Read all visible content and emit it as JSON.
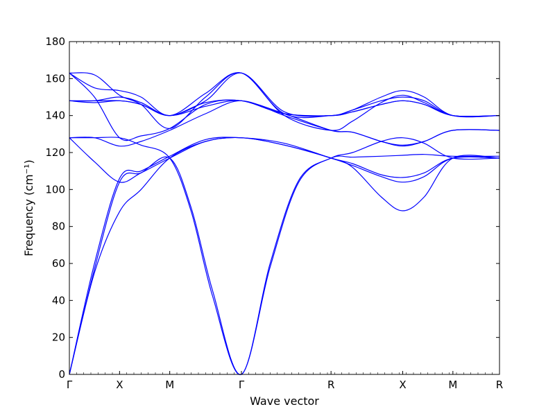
{
  "chart_data": {
    "type": "line",
    "title": "",
    "xlabel": "Wave vector",
    "ylabel": "Frequency (cm⁻¹)",
    "ylim": [
      0,
      180
    ],
    "yticks": [
      0,
      20,
      40,
      60,
      80,
      100,
      120,
      140,
      160,
      180
    ],
    "xlim": [
      0,
      6.0
    ],
    "xticks": [
      {
        "label": "Γ",
        "x": 0.0
      },
      {
        "label": "X",
        "x": 0.7
      },
      {
        "label": "M",
        "x": 1.4
      },
      {
        "label": "Γ",
        "x": 2.4
      },
      {
        "label": "R",
        "x": 3.65
      },
      {
        "label": "X",
        "x": 4.65
      },
      {
        "label": "M",
        "x": 5.35
      },
      {
        "label": "R",
        "x": 6.0
      }
    ],
    "line_color": "#0000ff",
    "grid": false,
    "legend": "none",
    "series": [
      {
        "points": [
          [
            0.0,
            0
          ],
          [
            0.35,
            55
          ],
          [
            0.7,
            88
          ],
          [
            1.0,
            100
          ],
          [
            1.4,
            117
          ],
          [
            1.9,
            126
          ],
          [
            2.4,
            128
          ],
          [
            3.0,
            124
          ],
          [
            3.65,
            117
          ],
          [
            3.95,
            112
          ],
          [
            4.35,
            96
          ],
          [
            4.65,
            88.5
          ],
          [
            4.95,
            96
          ],
          [
            5.35,
            117
          ],
          [
            6.0,
            117
          ]
        ]
      },
      {
        "points": [
          [
            0.0,
            0
          ],
          [
            0.35,
            57
          ],
          [
            0.7,
            104
          ],
          [
            1.0,
            109
          ],
          [
            1.4,
            117
          ],
          [
            1.9,
            126
          ],
          [
            2.4,
            128
          ],
          [
            3.0,
            124
          ],
          [
            3.65,
            117
          ],
          [
            3.95,
            113
          ],
          [
            4.35,
            107
          ],
          [
            4.65,
            104
          ],
          [
            4.95,
            107
          ],
          [
            5.35,
            117
          ],
          [
            6.0,
            117
          ]
        ]
      },
      {
        "points": [
          [
            0.0,
            0
          ],
          [
            0.35,
            60
          ],
          [
            0.7,
            106
          ],
          [
            1.0,
            110
          ],
          [
            1.4,
            118
          ],
          [
            1.9,
            127
          ],
          [
            2.4,
            128
          ],
          [
            3.0,
            125
          ],
          [
            3.65,
            117
          ],
          [
            3.95,
            114
          ],
          [
            4.35,
            108
          ],
          [
            4.65,
            106.5
          ],
          [
            4.95,
            109
          ],
          [
            5.35,
            117
          ],
          [
            6.0,
            117
          ]
        ]
      },
      {
        "points": [
          [
            0.0,
            128
          ],
          [
            0.35,
            115
          ],
          [
            0.7,
            104
          ],
          [
            1.0,
            109
          ],
          [
            1.4,
            117
          ],
          [
            1.7,
            90
          ],
          [
            2.0,
            45
          ],
          [
            2.4,
            0
          ],
          [
            2.8,
            60
          ],
          [
            3.2,
            105
          ],
          [
            3.65,
            117
          ],
          [
            3.95,
            120
          ],
          [
            4.35,
            126
          ],
          [
            4.65,
            128
          ],
          [
            4.95,
            125
          ],
          [
            5.35,
            117
          ],
          [
            6.0,
            117
          ]
        ]
      },
      {
        "points": [
          [
            0.0,
            128
          ],
          [
            0.35,
            128
          ],
          [
            0.7,
            128
          ],
          [
            1.0,
            124
          ],
          [
            1.4,
            117
          ],
          [
            1.7,
            88
          ],
          [
            2.0,
            42
          ],
          [
            2.4,
            0
          ],
          [
            2.8,
            58
          ],
          [
            3.2,
            104
          ],
          [
            3.65,
            117
          ],
          [
            3.95,
            117.5
          ],
          [
            4.35,
            118
          ],
          [
            4.65,
            118.5
          ],
          [
            4.95,
            119
          ],
          [
            5.35,
            118
          ],
          [
            6.0,
            118
          ]
        ]
      },
      {
        "points": [
          [
            0.0,
            128
          ],
          [
            0.35,
            128
          ],
          [
            0.7,
            123.5
          ],
          [
            1.0,
            126
          ],
          [
            1.4,
            132
          ],
          [
            1.9,
            141
          ],
          [
            2.4,
            148
          ],
          [
            3.0,
            140
          ],
          [
            3.65,
            132
          ],
          [
            3.95,
            131
          ],
          [
            4.35,
            126
          ],
          [
            4.65,
            123.5
          ],
          [
            4.95,
            126
          ],
          [
            5.35,
            132
          ],
          [
            6.0,
            132
          ]
        ]
      },
      {
        "points": [
          [
            0.0,
            148
          ],
          [
            0.35,
            147
          ],
          [
            0.7,
            148
          ],
          [
            1.0,
            146
          ],
          [
            1.4,
            140
          ],
          [
            1.9,
            145
          ],
          [
            2.4,
            148
          ],
          [
            3.0,
            141
          ],
          [
            3.65,
            140
          ],
          [
            3.95,
            142
          ],
          [
            4.35,
            146
          ],
          [
            4.65,
            148
          ],
          [
            4.95,
            146
          ],
          [
            5.35,
            140
          ],
          [
            6.0,
            140
          ]
        ]
      },
      {
        "points": [
          [
            0.0,
            148
          ],
          [
            0.35,
            148
          ],
          [
            0.7,
            150
          ],
          [
            1.0,
            147
          ],
          [
            1.4,
            140
          ],
          [
            1.9,
            147
          ],
          [
            2.4,
            148
          ],
          [
            3.0,
            141
          ],
          [
            3.65,
            140
          ],
          [
            3.95,
            143
          ],
          [
            4.35,
            148
          ],
          [
            4.65,
            150
          ],
          [
            4.95,
            148
          ],
          [
            5.35,
            140
          ],
          [
            6.0,
            140
          ]
        ]
      },
      {
        "points": [
          [
            0.0,
            163
          ],
          [
            0.35,
            162
          ],
          [
            0.7,
            151
          ],
          [
            1.0,
            146
          ],
          [
            1.4,
            133
          ],
          [
            1.9,
            150
          ],
          [
            2.4,
            163
          ],
          [
            3.0,
            140
          ],
          [
            3.65,
            132
          ],
          [
            3.95,
            137
          ],
          [
            4.35,
            147
          ],
          [
            4.65,
            151
          ],
          [
            4.95,
            147
          ],
          [
            5.35,
            140
          ],
          [
            6.0,
            140
          ]
        ]
      },
      {
        "points": [
          [
            0.0,
            163
          ],
          [
            0.35,
            155
          ],
          [
            0.7,
            153.5
          ],
          [
            1.0,
            150
          ],
          [
            1.4,
            140
          ],
          [
            1.9,
            152
          ],
          [
            2.4,
            163
          ],
          [
            3.0,
            141
          ],
          [
            3.65,
            140
          ],
          [
            3.95,
            143
          ],
          [
            4.35,
            150
          ],
          [
            4.65,
            153.5
          ],
          [
            4.95,
            150
          ],
          [
            5.35,
            140
          ],
          [
            6.0,
            140
          ]
        ]
      },
      {
        "points": [
          [
            0.0,
            163
          ],
          [
            0.35,
            150
          ],
          [
            0.7,
            128
          ],
          [
            1.0,
            129
          ],
          [
            1.4,
            133
          ],
          [
            1.9,
            146
          ],
          [
            2.4,
            148
          ],
          [
            3.0,
            141
          ],
          [
            3.65,
            132
          ],
          [
            3.95,
            131
          ],
          [
            4.35,
            126
          ],
          [
            4.65,
            124
          ],
          [
            4.95,
            126
          ],
          [
            5.35,
            132
          ],
          [
            6.0,
            132
          ]
        ]
      },
      {
        "points": [
          [
            0.0,
            148
          ],
          [
            0.35,
            148
          ],
          [
            0.7,
            148
          ],
          [
            1.0,
            146
          ],
          [
            1.4,
            140
          ],
          [
            1.9,
            148
          ],
          [
            2.4,
            163
          ],
          [
            3.0,
            142
          ],
          [
            3.65,
            140
          ],
          [
            3.95,
            142
          ],
          [
            4.35,
            146
          ],
          [
            4.65,
            148
          ],
          [
            4.95,
            146
          ],
          [
            5.35,
            140
          ],
          [
            6.0,
            140
          ]
        ]
      }
    ]
  }
}
